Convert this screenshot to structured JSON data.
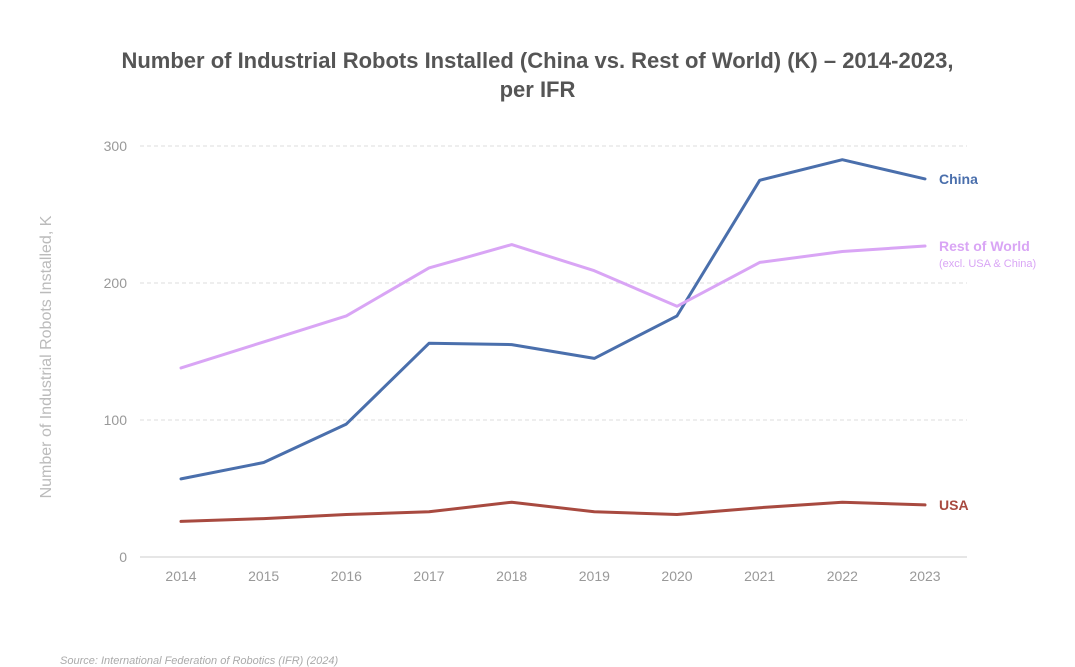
{
  "chart_data": {
    "type": "line",
    "title_lines": [
      "Number of Industrial Robots Installed (China vs. Rest of World) (K) – 2014-2023,",
      "per IFR"
    ],
    "xlabel": "",
    "ylabel": "Number of Industrial Robots Installed, K",
    "x": [
      "2014",
      "2015",
      "2016",
      "2017",
      "2018",
      "2019",
      "2020",
      "2021",
      "2022",
      "2023"
    ],
    "ylim": [
      0,
      300
    ],
    "yticks": [
      "0",
      "100",
      "200",
      "300"
    ],
    "grid": "horizontal dashed",
    "series": [
      {
        "name": "China",
        "note": "",
        "color": "#4a6fac",
        "values": [
          57,
          69,
          97,
          156,
          155,
          145,
          176,
          275,
          290,
          276
        ]
      },
      {
        "name": "Rest of World",
        "note": "(excl. USA & China)",
        "color": "#d9a5f5",
        "values": [
          138,
          157,
          176,
          211,
          228,
          209,
          183,
          215,
          223,
          227
        ]
      },
      {
        "name": "USA",
        "note": "",
        "color": "#a84a40",
        "values": [
          26,
          28,
          31,
          33,
          40,
          33,
          31,
          36,
          40,
          38
        ]
      }
    ]
  },
  "source": "Source: International Federation of Robotics (IFR) (2024)"
}
